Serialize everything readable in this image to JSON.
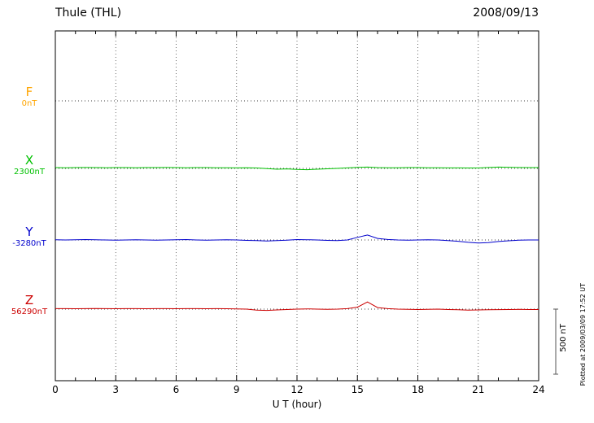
{
  "header": {
    "title": "Thule (THL)",
    "date": "2008/09/13"
  },
  "scale_bar": {
    "label": "500 nT",
    "value_nT": 500
  },
  "footer": {
    "note": "Plotted at 2009/03/09 17:52 UT"
  },
  "chart_data": {
    "type": "line",
    "title": "Thule (THL)",
    "date": "2008/09/13",
    "xlabel": "U T (hour)",
    "xlim": [
      0,
      24
    ],
    "xticks": [
      0,
      3,
      6,
      9,
      12,
      15,
      18,
      21,
      24
    ],
    "x_step_hours": 0.5,
    "scale_bar_nT": 500,
    "series": [
      {
        "name": "F",
        "base": "0nT",
        "base_value_nT": 0,
        "color": "#FFA500",
        "style": "none",
        "offsets_nT": [
          0,
          0,
          0,
          0,
          0,
          0,
          0,
          0,
          0,
          0,
          0,
          0,
          0,
          0,
          0,
          0,
          0,
          0,
          0,
          0,
          0,
          0,
          0,
          0,
          0,
          0,
          0,
          0,
          0,
          0,
          0,
          0,
          0,
          0,
          0,
          0,
          0,
          0,
          0,
          0,
          0,
          0,
          0,
          0,
          0,
          0,
          0,
          0,
          0
        ]
      },
      {
        "name": "X",
        "base": "2300nT",
        "base_value_nT": 2300,
        "color": "#00C000",
        "style": "solid",
        "offsets_nT": [
          6,
          5,
          6,
          7,
          6,
          5,
          6,
          6,
          5,
          6,
          6,
          7,
          6,
          5,
          6,
          6,
          5,
          5,
          4,
          5,
          3,
          -2,
          -6,
          -4,
          -8,
          -10,
          -6,
          -3,
          0,
          4,
          8,
          10,
          6,
          5,
          5,
          6,
          6,
          5,
          5,
          4,
          4,
          3,
          3,
          7,
          10,
          9,
          7,
          6,
          6
        ]
      },
      {
        "name": "Y",
        "base": "-3280nT",
        "base_value_nT": -3280,
        "color": "#0000CC",
        "style": "solid",
        "offsets_nT": [
          2,
          0,
          2,
          3,
          2,
          0,
          -2,
          0,
          2,
          0,
          -2,
          0,
          2,
          3,
          0,
          -2,
          0,
          2,
          0,
          -3,
          -5,
          -8,
          -5,
          -2,
          3,
          2,
          0,
          -3,
          -5,
          0,
          20,
          38,
          12,
          4,
          0,
          -2,
          0,
          2,
          0,
          -5,
          -10,
          -18,
          -24,
          -20,
          -12,
          -6,
          -2,
          0,
          0
        ]
      },
      {
        "name": "Z",
        "base": "56290nT",
        "base_value_nT": 56290,
        "color": "#CC0000",
        "style": "solid",
        "offsets_nT": [
          4,
          4,
          3,
          4,
          5,
          4,
          3,
          4,
          4,
          3,
          4,
          4,
          3,
          4,
          4,
          3,
          4,
          3,
          2,
          0,
          -8,
          -10,
          -6,
          -3,
          0,
          2,
          0,
          -2,
          0,
          4,
          15,
          55,
          12,
          4,
          0,
          -2,
          -3,
          -2,
          0,
          -3,
          -5,
          -8,
          -6,
          -5,
          -4,
          -3,
          -2,
          -3,
          -3
        ]
      }
    ]
  }
}
